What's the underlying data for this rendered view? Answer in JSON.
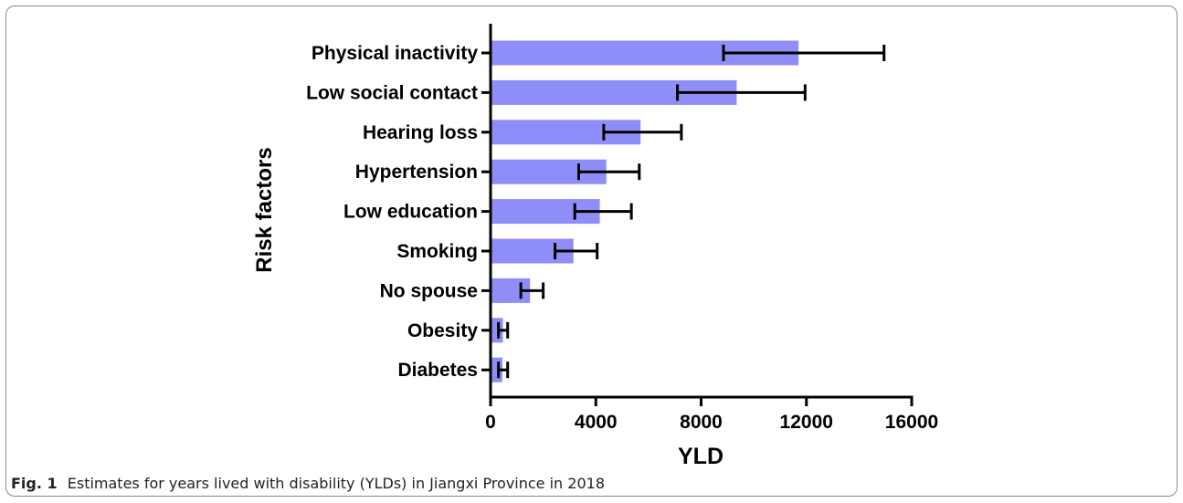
{
  "colors": {
    "bar": "#8f8ef9",
    "axis": "#000000",
    "frame": "#8a8a8a"
  },
  "chart_data": {
    "type": "bar",
    "orientation": "horizontal",
    "xlabel": "YLD",
    "ylabel": "Risk factors",
    "xlim": [
      0,
      16000
    ],
    "xticks": [
      "0",
      "4000",
      "8000",
      "12000",
      "16000"
    ],
    "categories": [
      "Physical inactivity",
      "Low social contact",
      "Hearing loss",
      "Hypertension",
      "Low education",
      "Smoking",
      "No spouse",
      "Obesity",
      "Diabetes"
    ],
    "values": [
      11700,
      9350,
      5700,
      4400,
      4150,
      3150,
      1500,
      470,
      450
    ],
    "error_low": [
      8850,
      7100,
      4300,
      3350,
      3200,
      2450,
      1150,
      300,
      300
    ],
    "error_high": [
      14950,
      11950,
      7250,
      5650,
      5350,
      4050,
      2000,
      650,
      650
    ],
    "grid": false,
    "legend": "none"
  },
  "caption": {
    "label": "Fig. 1",
    "text": "Estimates for years lived with disability (YLDs) in Jiangxi Province in 2018"
  }
}
